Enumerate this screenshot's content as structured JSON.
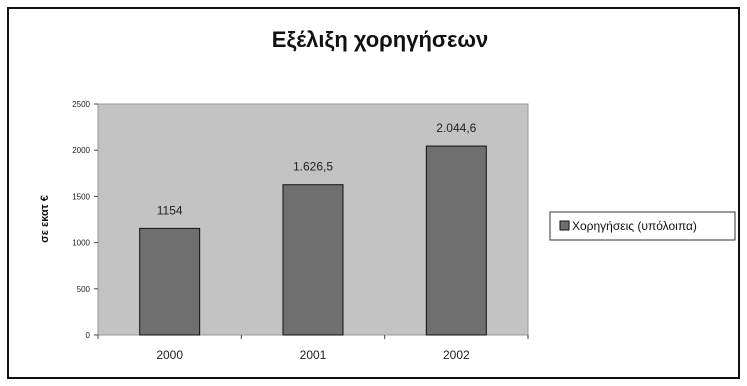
{
  "chart_data": {
    "type": "bar",
    "title": "Εξέλιξη χορηγήσεων",
    "ylabel": "σε εκατ €",
    "xlabel": "",
    "categories": [
      "2000",
      "2001",
      "2002"
    ],
    "series": [
      {
        "name": "Χορηγήσεις (υπόλοιπα)",
        "values": [
          1154,
          1626.5,
          2044.6
        ],
        "labels": [
          "1154",
          "1.626,5",
          "2.044,6"
        ],
        "color": "#6f6f6f"
      }
    ],
    "ylim": [
      0,
      2500
    ],
    "yticks": [
      0,
      500,
      1000,
      1500,
      2000,
      2500
    ],
    "grid": false,
    "legend": "right",
    "plot_background": "#c3c3c3"
  }
}
